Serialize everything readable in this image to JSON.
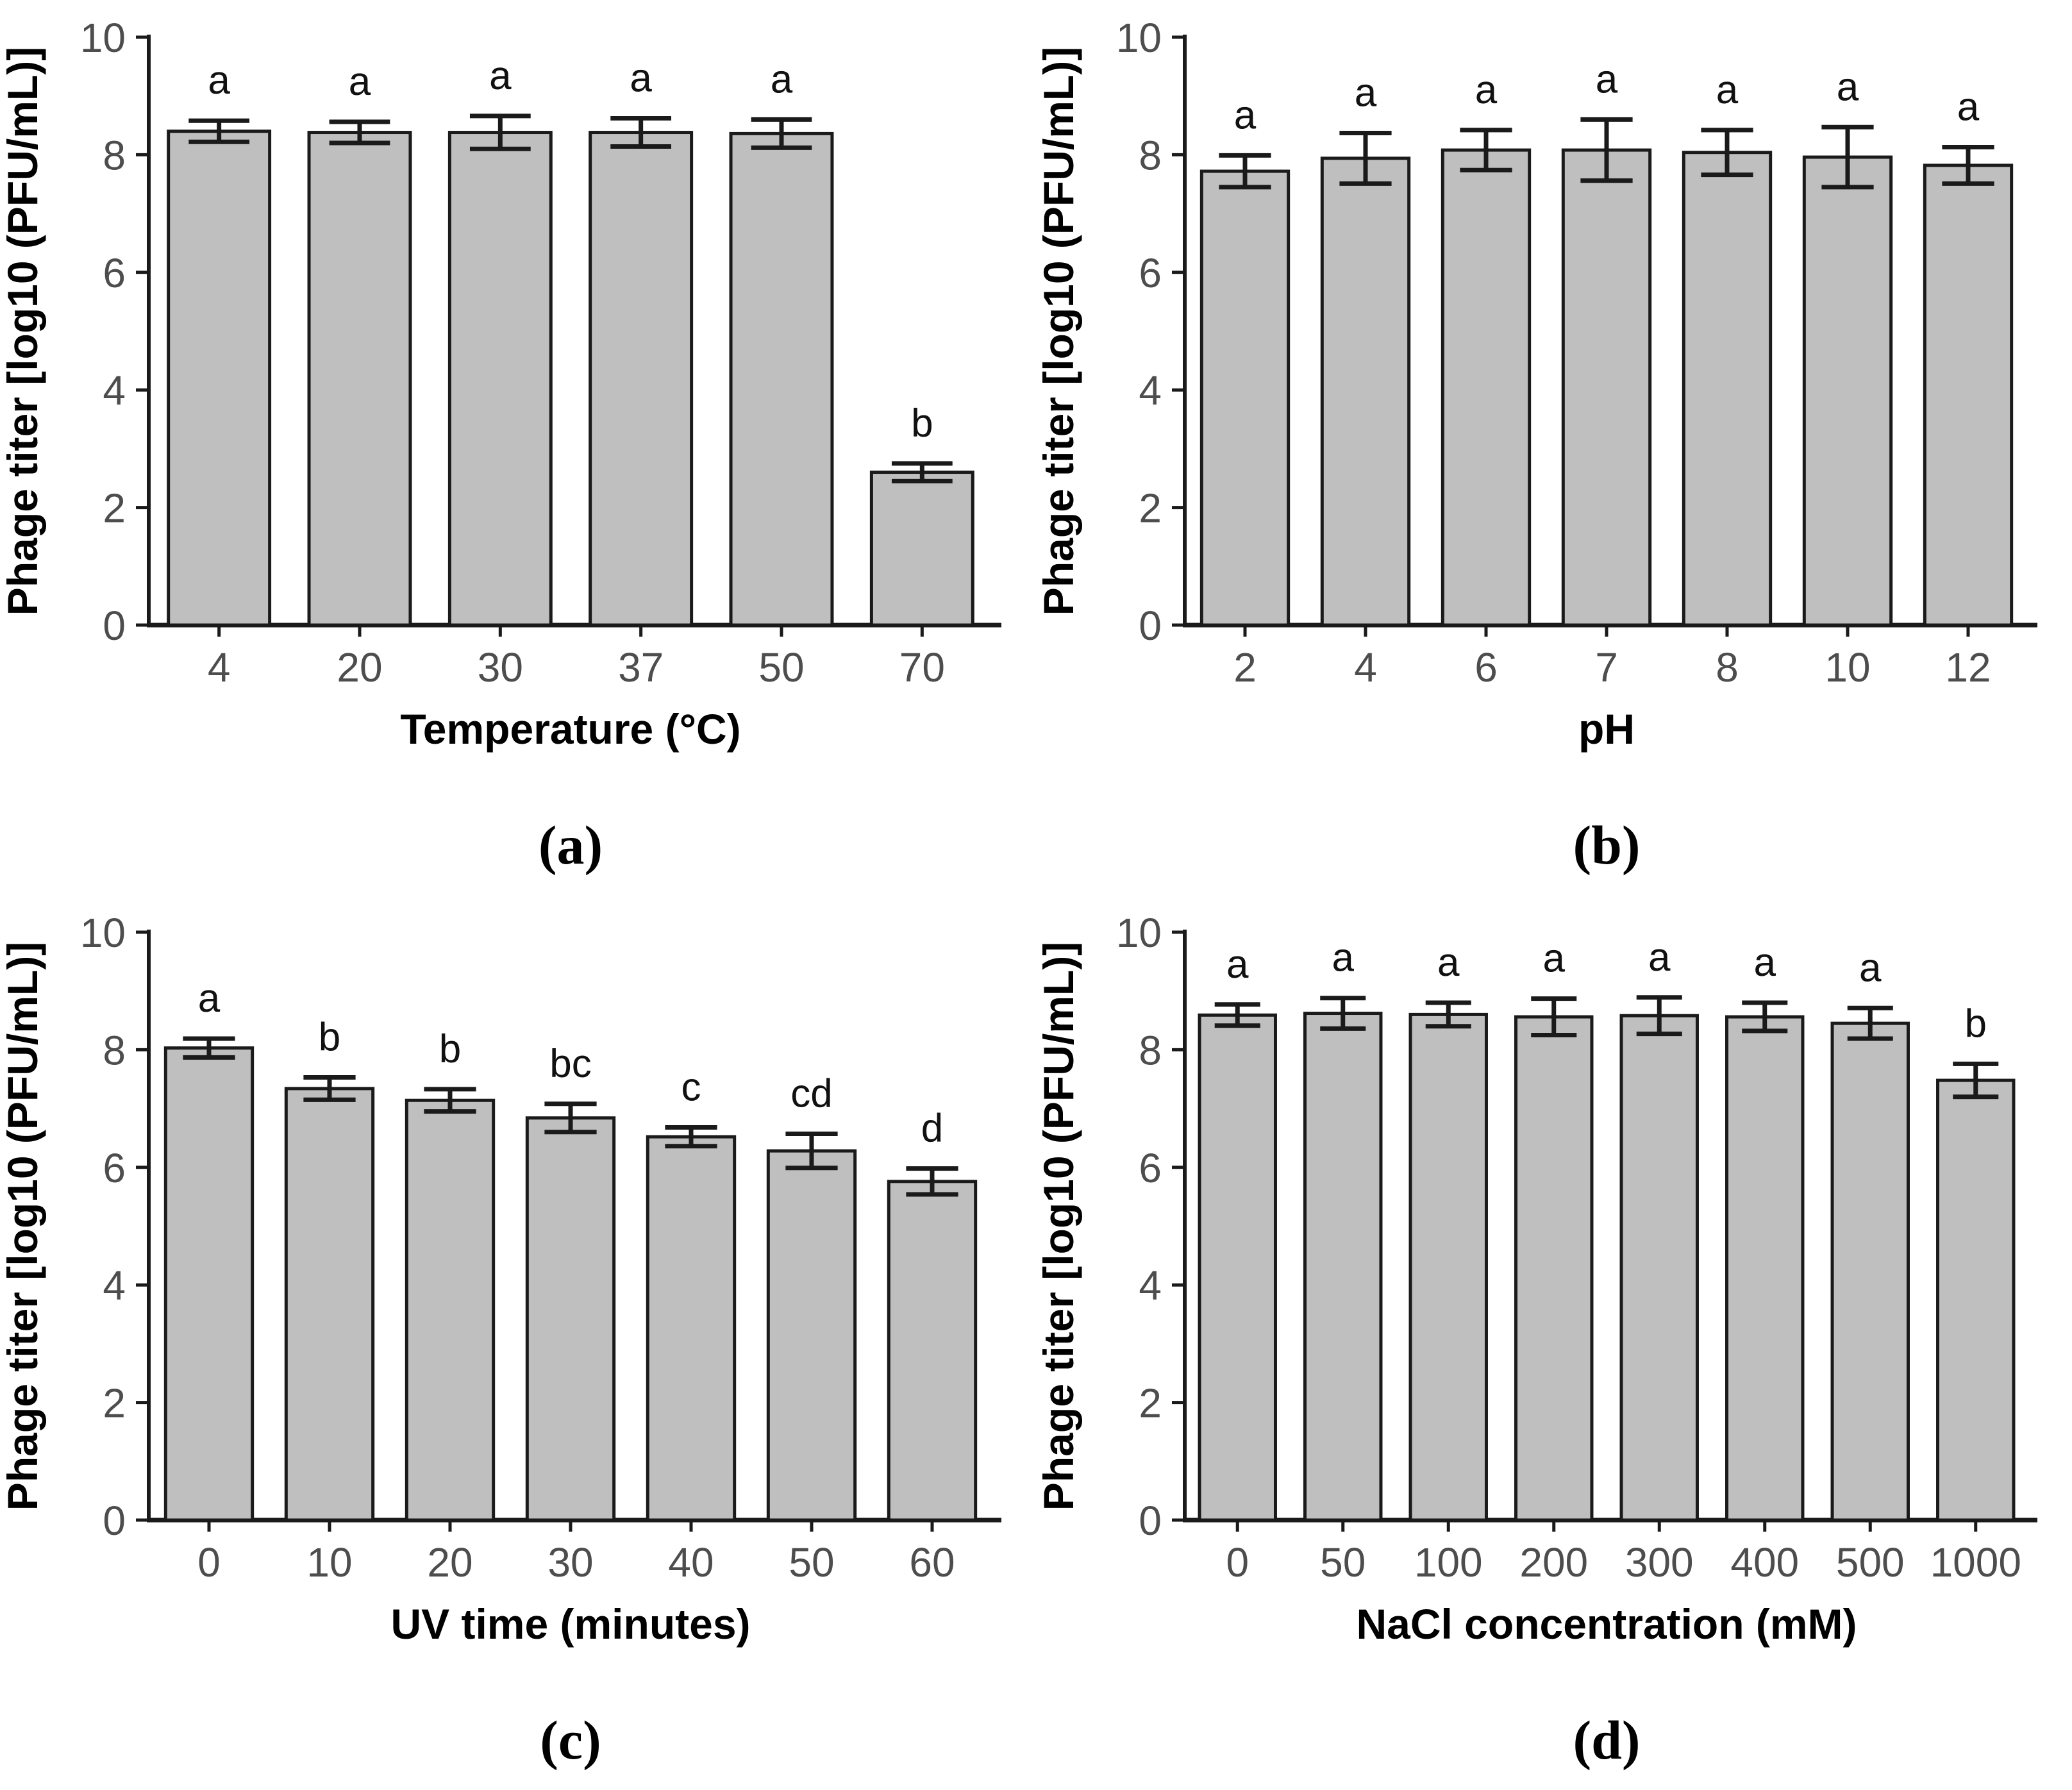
{
  "figure": {
    "background": "#ffffff",
    "colors": {
      "bar_fill": "#bfbfbf",
      "bar_stroke": "#1a1a1a",
      "error_bar": "#1a1a1a",
      "axis_line": "#1a1a1a",
      "tick_label": "#4d4d4d",
      "axis_title": "#000000",
      "sig_letter": "#111111",
      "caption": "#000000"
    }
  },
  "chart_data": [
    {
      "id": "a",
      "type": "bar",
      "panel_label": "(a)",
      "xlabel": "Temperature (°C)",
      "ylabel": "Phage titer [log10 (PFU/mL)]",
      "categories": [
        "4",
        "20",
        "30",
        "37",
        "50",
        "70"
      ],
      "values": [
        8.4,
        8.38,
        8.38,
        8.38,
        8.36,
        2.6
      ],
      "errors": [
        0.18,
        0.18,
        0.28,
        0.24,
        0.24,
        0.15
      ],
      "sig_letters": [
        "a",
        "a",
        "a",
        "a",
        "a",
        "b"
      ],
      "yticks": [
        0,
        2,
        4,
        6,
        8,
        10
      ],
      "ylim": [
        0,
        10
      ],
      "grid": false,
      "legend": "none"
    },
    {
      "id": "b",
      "type": "bar",
      "panel_label": "(b)",
      "xlabel": "pH",
      "ylabel": "Phage titer [log10 (PFU/mL)]",
      "categories": [
        "2",
        "4",
        "6",
        "7",
        "8",
        "10",
        "12"
      ],
      "values": [
        7.72,
        7.94,
        8.08,
        8.08,
        8.04,
        7.96,
        7.82
      ],
      "errors": [
        0.27,
        0.43,
        0.34,
        0.52,
        0.38,
        0.51,
        0.31
      ],
      "sig_letters": [
        "a",
        "a",
        "a",
        "a",
        "a",
        "a",
        "a"
      ],
      "yticks": [
        0,
        2,
        4,
        6,
        8,
        10
      ],
      "ylim": [
        0,
        10
      ],
      "grid": false,
      "legend": "none"
    },
    {
      "id": "c",
      "type": "bar",
      "panel_label": "(c)",
      "xlabel": "UV time (minutes)",
      "ylabel": "Phage titer [log10 (PFU/mL)]",
      "categories": [
        "0",
        "10",
        "20",
        "30",
        "40",
        "50",
        "60"
      ],
      "values": [
        8.03,
        7.34,
        7.14,
        6.84,
        6.52,
        6.28,
        5.76
      ],
      "errors": [
        0.16,
        0.19,
        0.19,
        0.24,
        0.16,
        0.29,
        0.22
      ],
      "sig_letters": [
        "a",
        "b",
        "b",
        "bc",
        "c",
        "cd",
        "d"
      ],
      "yticks": [
        0,
        2,
        4,
        6,
        8,
        10
      ],
      "ylim": [
        0,
        10
      ],
      "grid": false,
      "legend": "none"
    },
    {
      "id": "d",
      "type": "bar",
      "panel_label": "(d)",
      "xlabel": "NaCl concentration (mM)",
      "ylabel": "Phage titer [log10 (PFU/mL)]",
      "categories": [
        "0",
        "50",
        "100",
        "200",
        "300",
        "400",
        "500",
        "1000"
      ],
      "values": [
        8.59,
        8.62,
        8.6,
        8.56,
        8.58,
        8.56,
        8.45,
        7.48
      ],
      "errors": [
        0.18,
        0.26,
        0.2,
        0.31,
        0.31,
        0.24,
        0.26,
        0.28
      ],
      "sig_letters": [
        "a",
        "a",
        "a",
        "a",
        "a",
        "a",
        "a",
        "b"
      ],
      "yticks": [
        0,
        2,
        4,
        6,
        8,
        10
      ],
      "ylim": [
        0,
        10
      ],
      "grid": false,
      "legend": "none"
    }
  ]
}
